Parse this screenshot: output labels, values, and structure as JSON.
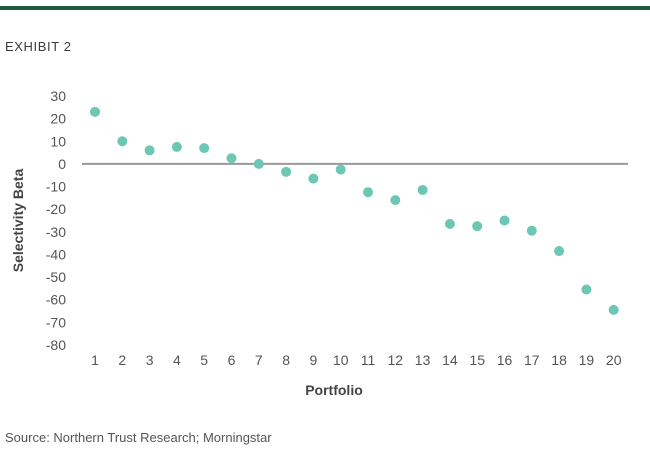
{
  "header": {
    "exhibit_label": "EXHIBIT 2"
  },
  "colors": {
    "brand": "#1d5a3e",
    "marker": "#6cc7b5",
    "zero_line": "#9a9a9a"
  },
  "source_text": "Source: Northern Trust Research; Morningstar",
  "chart_data": {
    "type": "scatter",
    "xlabel": "Portfolio",
    "ylabel": "Selectivity Beta",
    "x": [
      1,
      2,
      3,
      4,
      5,
      6,
      7,
      8,
      9,
      10,
      11,
      12,
      13,
      14,
      15,
      16,
      17,
      18,
      19,
      20
    ],
    "y": [
      23,
      10,
      6,
      7.5,
      7,
      2.5,
      0,
      -3.5,
      -6.5,
      -2.5,
      -12.5,
      -16,
      -11.5,
      -26.5,
      -27.5,
      -25,
      -29.5,
      -38.5,
      -55.5,
      -64.5
    ],
    "ylim": [
      -80,
      30
    ],
    "yticks": [
      30,
      20,
      10,
      0,
      -10,
      -20,
      -30,
      -40,
      -50,
      -60,
      -70,
      -80
    ],
    "xticks": [
      1,
      2,
      3,
      4,
      5,
      6,
      7,
      8,
      9,
      10,
      11,
      12,
      13,
      14,
      15,
      16,
      17,
      18,
      19,
      20
    ],
    "zero_line": true,
    "grid": false,
    "legend": "none"
  }
}
